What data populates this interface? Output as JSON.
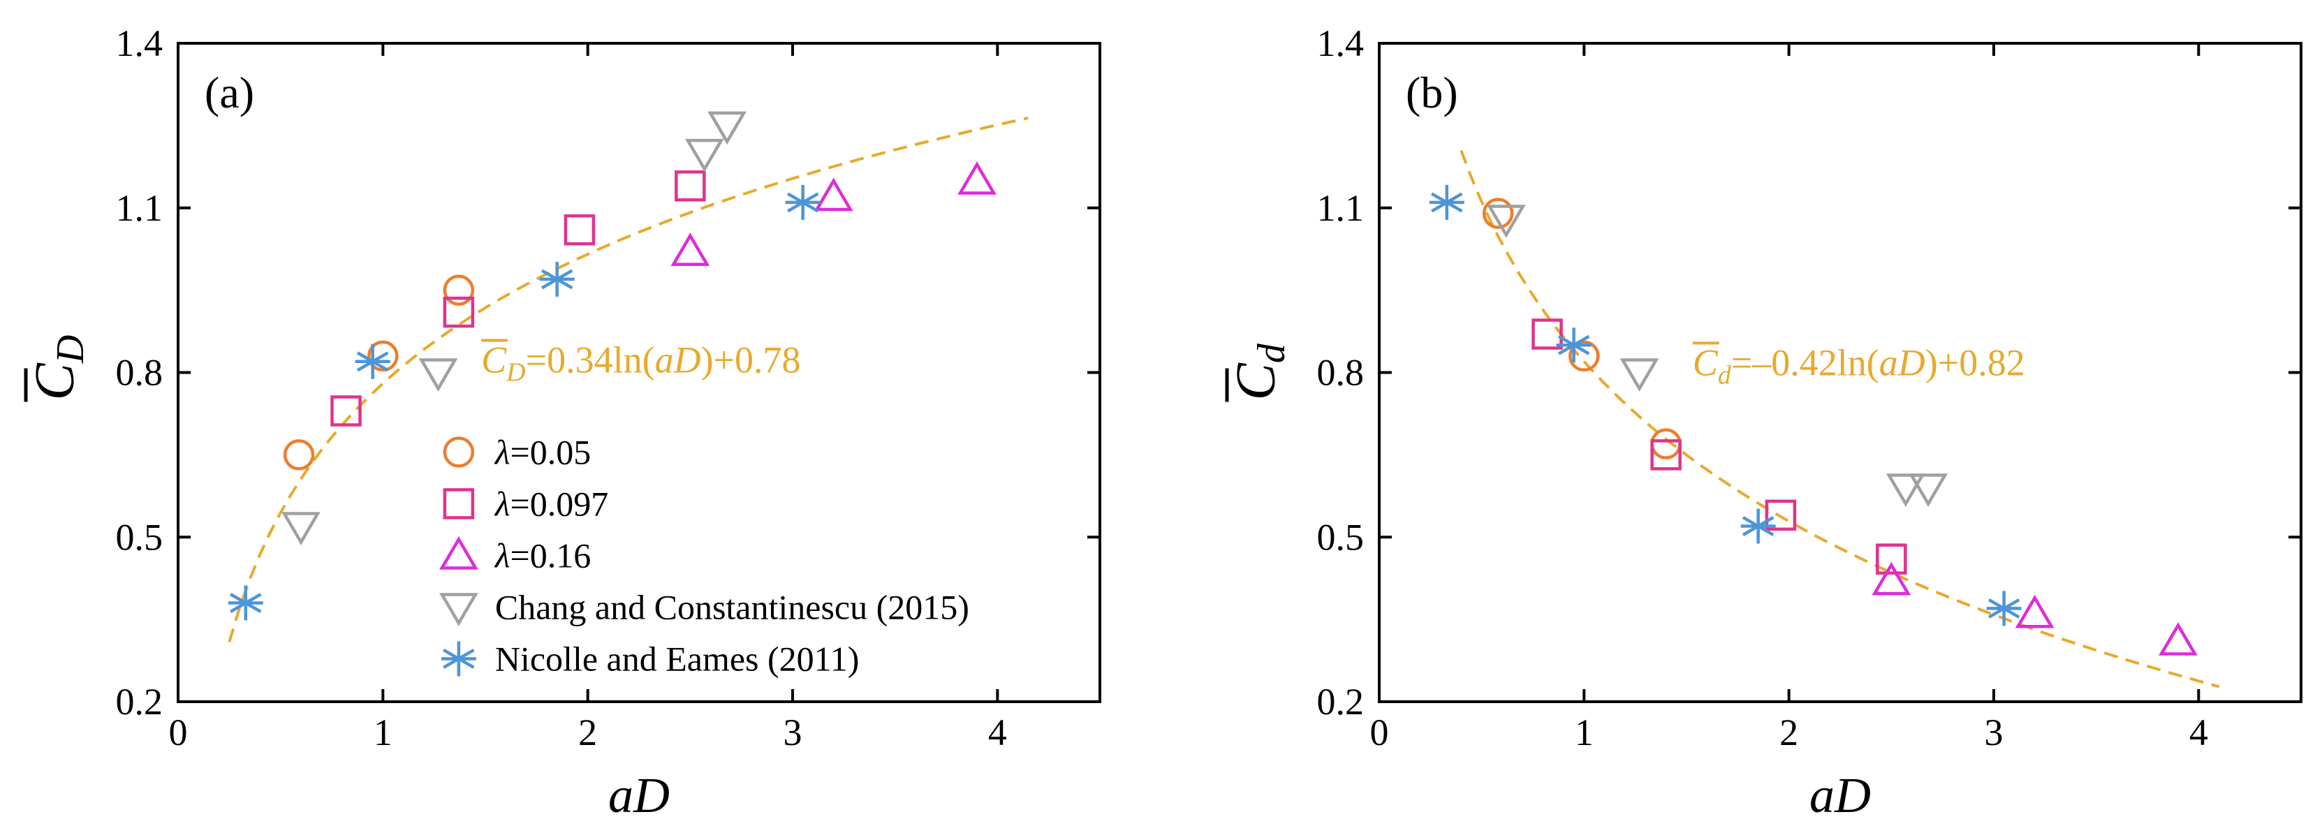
{
  "colors": {
    "fit": "#E8A92B",
    "lambda_005": "#EE7D2B",
    "lambda_0097": "#E0338C",
    "lambda_016": "#DD2BDD",
    "chang": "#A0A0A0",
    "nicolle": "#4D95D9"
  },
  "chart_data": [
    {
      "panel": "(a)",
      "type": "scatter",
      "xlabel": "aD",
      "ylabel": "C̄_D",
      "xlim": [
        0,
        4.5
      ],
      "ylim": [
        0.2,
        1.4
      ],
      "xticks": [
        0,
        1,
        2,
        3,
        4
      ],
      "yticks": [
        0.2,
        0.5,
        0.8,
        1.1,
        1.4
      ],
      "xtick_labels": [
        "0",
        "1",
        "2",
        "3",
        "4"
      ],
      "ytick_labels": [
        "0.2",
        "0.5",
        "0.8",
        "1.1",
        "1.4"
      ],
      "fit": {
        "a": 0.34,
        "b": 0.78,
        "x_range": [
          0.25,
          4.15
        ],
        "label_main": "=0.34ln(",
        "label_var": "aD",
        "label_end": ")+0.78",
        "label_sym": "C",
        "label_sub": "D"
      },
      "legend": [
        {
          "key": "lambda_005",
          "prefix": "λ",
          "label": "=0.05"
        },
        {
          "key": "lambda_0097",
          "prefix": "λ",
          "label": "=0.097"
        },
        {
          "key": "lambda_016",
          "prefix": "λ",
          "label": "=0.16"
        },
        {
          "key": "chang",
          "prefix": "",
          "label": "Chang and Constantinescu (2015)"
        },
        {
          "key": "nicolle",
          "prefix": "",
          "label": "Nicolle and Eames (2011)"
        }
      ],
      "series": [
        {
          "key": "lambda_005",
          "marker": "circle",
          "x": [
            0.59,
            1.0,
            1.37
          ],
          "y": [
            0.65,
            0.83,
            0.95
          ]
        },
        {
          "key": "lambda_0097",
          "marker": "square",
          "x": [
            0.82,
            1.37,
            1.96,
            2.5
          ],
          "y": [
            0.73,
            0.91,
            1.06,
            1.14
          ]
        },
        {
          "key": "lambda_016",
          "marker": "triangle",
          "x": [
            2.5,
            3.2,
            3.9
          ],
          "y": [
            1.02,
            1.12,
            1.15
          ]
        },
        {
          "key": "chang",
          "marker": "invtriangle",
          "x": [
            0.6,
            1.27,
            2.57,
            2.68
          ],
          "y": [
            0.52,
            0.8,
            1.2,
            1.25
          ]
        },
        {
          "key": "nicolle",
          "marker": "asterisk",
          "x": [
            0.33,
            0.95,
            1.85,
            3.05
          ],
          "y": [
            0.38,
            0.82,
            0.97,
            1.11
          ]
        }
      ]
    },
    {
      "panel": "(b)",
      "type": "scatter",
      "xlabel": "aD",
      "ylabel": "C̄_d",
      "xlim": [
        0,
        4.5
      ],
      "ylim": [
        0.2,
        1.4
      ],
      "xticks": [
        0,
        1,
        2,
        3,
        4
      ],
      "yticks": [
        0.2,
        0.5,
        0.8,
        1.1,
        1.4
      ],
      "xtick_labels": [
        "0",
        "1",
        "2",
        "3",
        "4"
      ],
      "ytick_labels": [
        "0.2",
        "0.5",
        "0.8",
        "1.1",
        "1.4"
      ],
      "fit": {
        "a": -0.42,
        "b": 0.82,
        "x_range": [
          0.4,
          4.1
        ],
        "label_main": "=–0.42ln(",
        "label_var": "aD",
        "label_end": ")+0.82",
        "label_sym": "C",
        "label_sub": "d"
      },
      "series": [
        {
          "key": "lambda_005",
          "marker": "circle",
          "x": [
            0.58,
            1.0,
            1.4
          ],
          "y": [
            1.09,
            0.83,
            0.67
          ]
        },
        {
          "key": "lambda_0097",
          "marker": "square",
          "x": [
            0.82,
            1.4,
            1.96,
            2.5
          ],
          "y": [
            0.87,
            0.65,
            0.54,
            0.46
          ]
        },
        {
          "key": "lambda_016",
          "marker": "triangle",
          "x": [
            2.5,
            3.2,
            3.9
          ],
          "y": [
            0.42,
            0.36,
            0.31
          ]
        },
        {
          "key": "chang",
          "marker": "invtriangle",
          "x": [
            0.62,
            1.27,
            2.57,
            2.68
          ],
          "y": [
            1.08,
            0.8,
            0.59,
            0.59
          ]
        },
        {
          "key": "nicolle",
          "marker": "asterisk",
          "x": [
            0.33,
            0.95,
            1.85,
            3.05
          ],
          "y": [
            1.11,
            0.85,
            0.52,
            0.37
          ]
        }
      ]
    }
  ]
}
